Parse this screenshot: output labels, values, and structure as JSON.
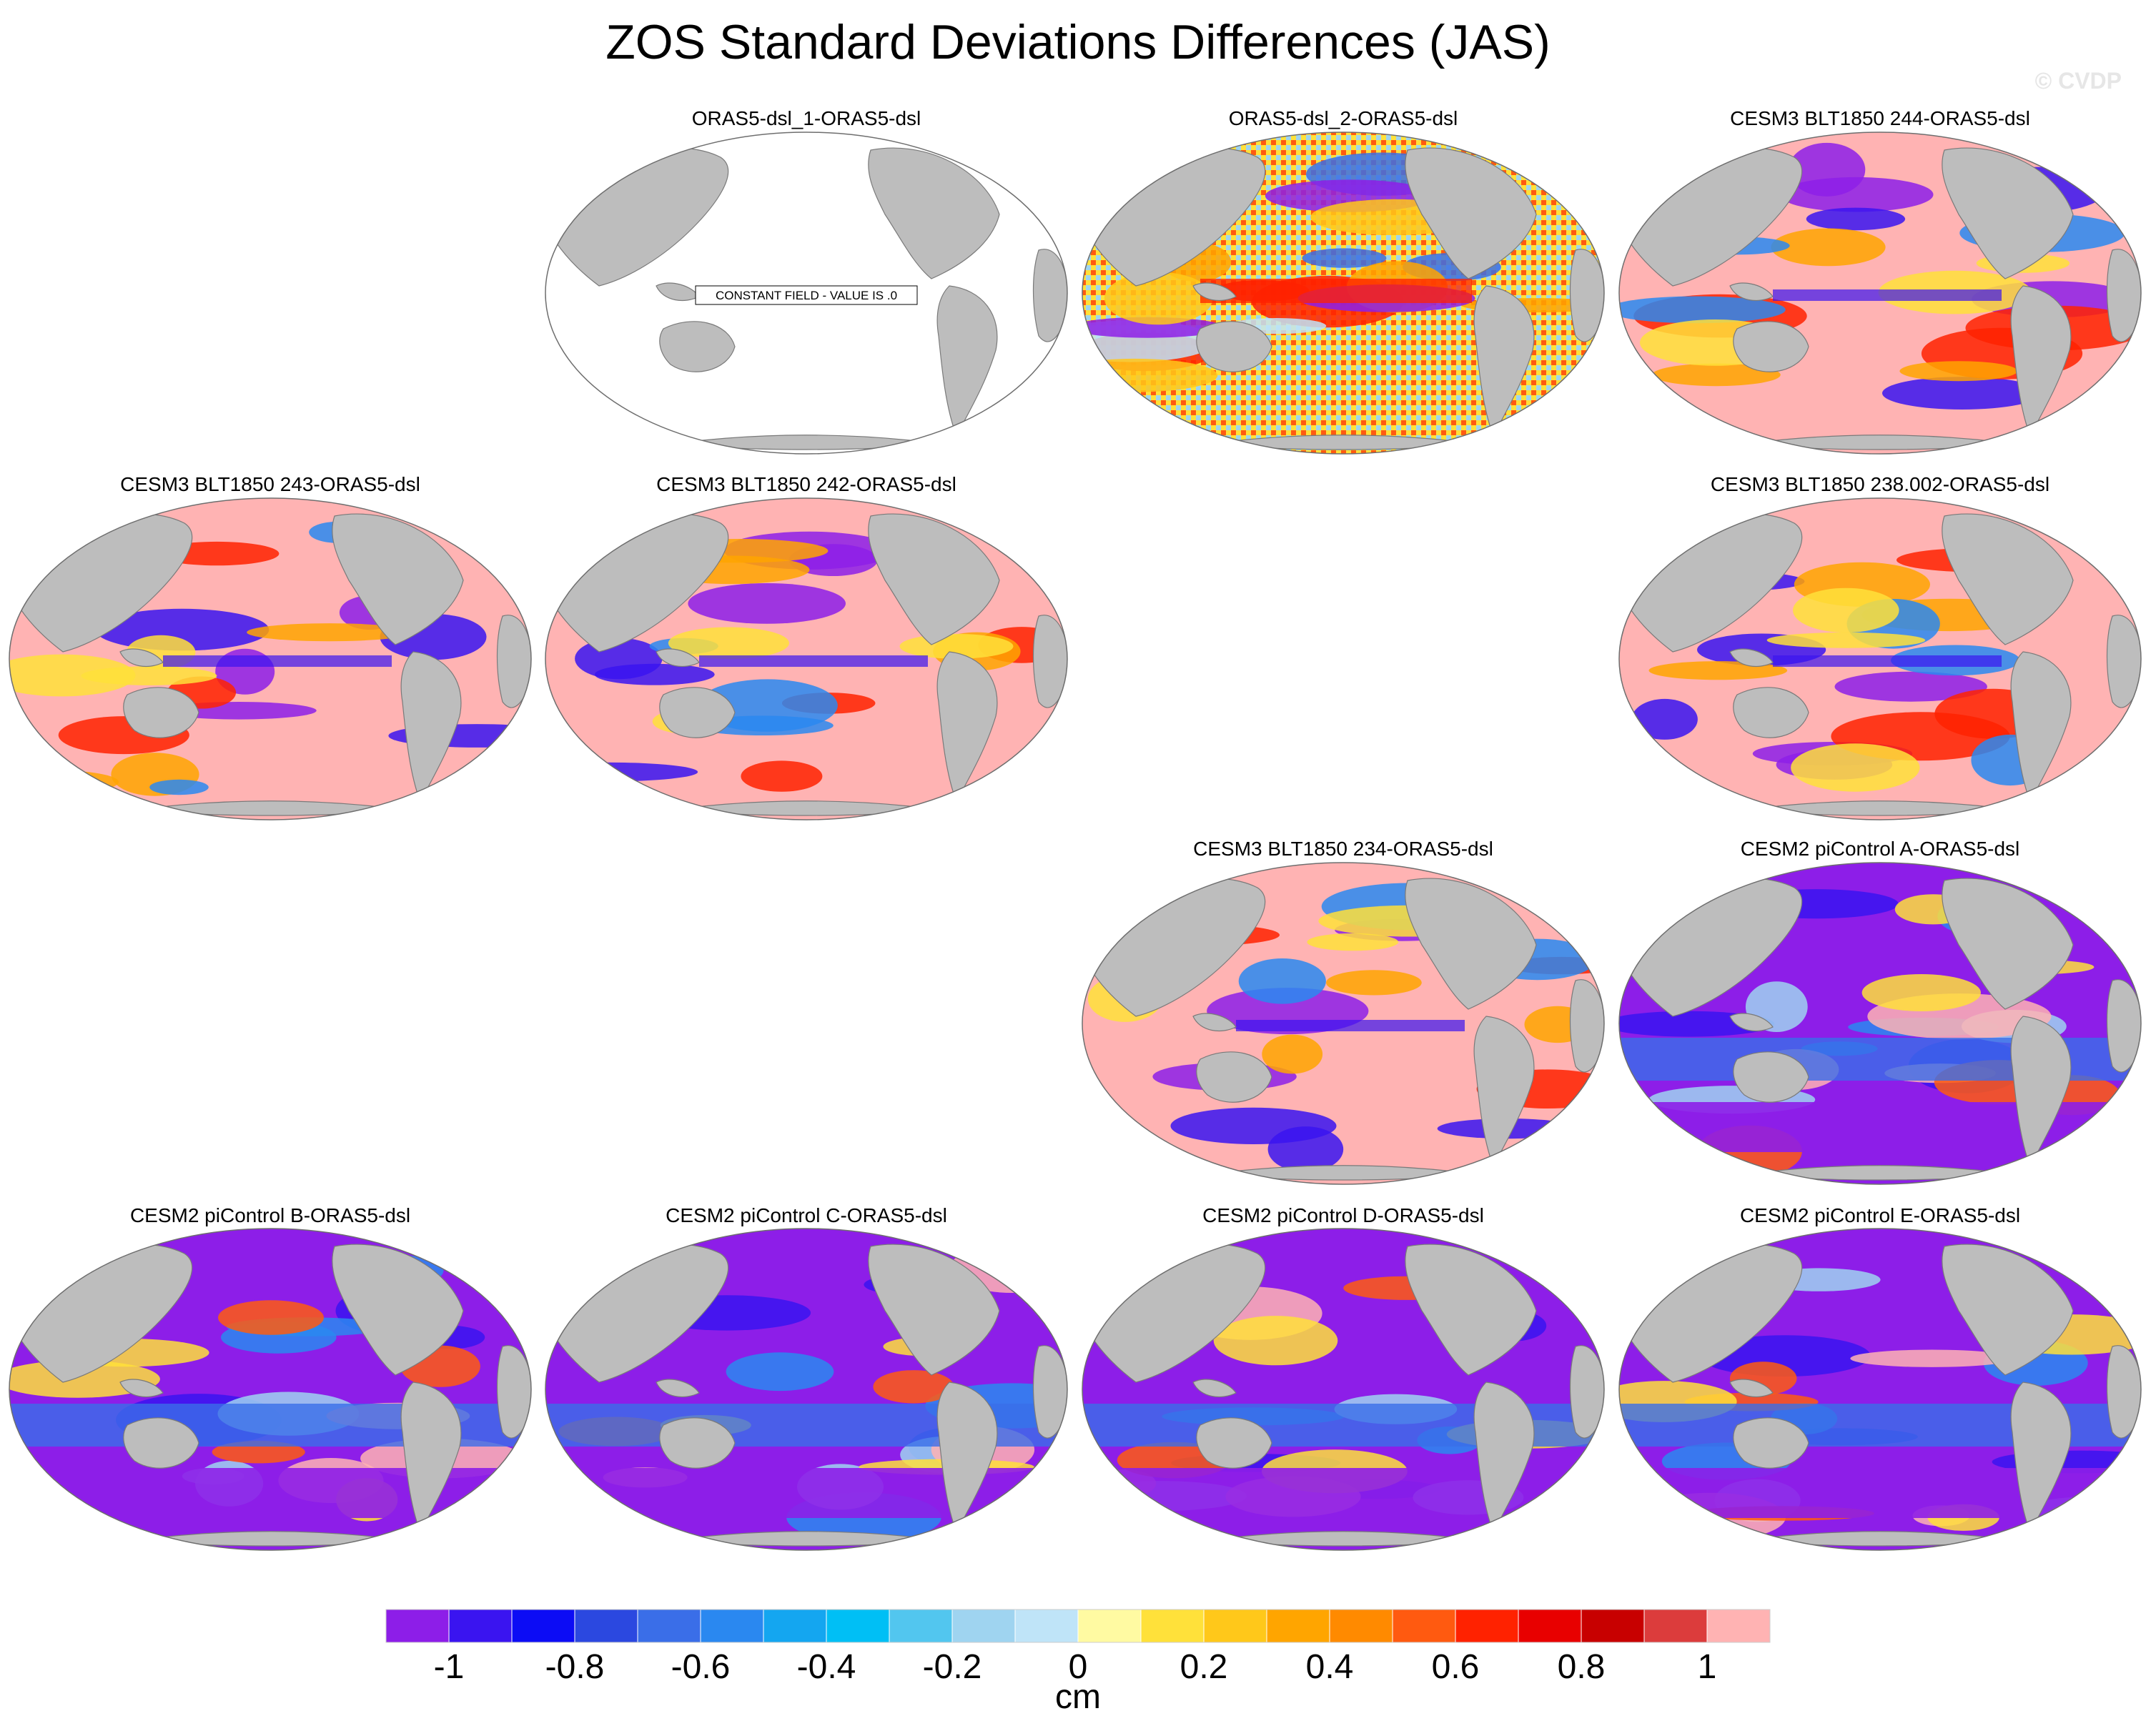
{
  "figure": {
    "title": "ZOS Standard Deviations Differences (JAS)",
    "watermark": "© CVDP"
  },
  "chart_data": {
    "type": "heatmap",
    "title": "ZOS Standard Deviations Differences (JAS)",
    "units": "cm",
    "colorbar": {
      "levels": [
        -1,
        -0.9,
        -0.8,
        -0.7,
        -0.6,
        -0.5,
        -0.4,
        -0.3,
        -0.2,
        -0.1,
        0,
        0.1,
        0.2,
        0.3,
        0.4,
        0.5,
        0.6,
        0.7,
        0.8,
        0.9,
        1
      ],
      "colors": [
        "#8d1ee8",
        "#3a14f0",
        "#0c0cf5",
        "#2b48e0",
        "#3a6ee8",
        "#2a88f0",
        "#14a6f0",
        "#00bff5",
        "#52c6ef",
        "#9fd4f0",
        "#bfe4f8",
        "#fffaa2",
        "#ffe13a",
        "#ffc81a",
        "#ffa500",
        "#ff8a00",
        "#ff5a10",
        "#ff2200",
        "#e80000",
        "#c80000",
        "#dc3c3c",
        "#ffb3b3"
      ],
      "tick_labels": [
        "-1",
        "-0.8",
        "-0.6",
        "-0.4",
        "-0.2",
        "0",
        "0.2",
        "0.4",
        "0.6",
        "0.8",
        "1"
      ],
      "tick_values": [
        -1,
        -0.8,
        -0.6,
        -0.4,
        -0.2,
        0,
        0.2,
        0.4,
        0.6,
        0.8,
        1
      ]
    },
    "panels": [
      {
        "title": "ORAS5-dsl_1-ORAS5-dsl",
        "scheme": "constant",
        "note": "CONSTANT FIELD - VALUE IS .0"
      },
      {
        "title": "ORAS5-dsl_2-ORAS5-dsl",
        "scheme": "mixed"
      },
      {
        "title": "CESM3 BLT1850 244-ORAS5-dsl",
        "scheme": "pink"
      },
      {
        "title": "CESM3 BLT1850 243-ORAS5-dsl",
        "scheme": "pink"
      },
      {
        "title": "CESM3 BLT1850 242-ORAS5-dsl",
        "scheme": "pink"
      },
      {
        "title": "CESM3 BLT1850 238.002-ORAS5-dsl",
        "scheme": "pink"
      },
      {
        "title": "CESM3 BLT1850 234-ORAS5-dsl",
        "scheme": "pink"
      },
      {
        "title": "CESM2 piControl A-ORAS5-dsl",
        "scheme": "purple"
      },
      {
        "title": "CESM2 piControl B-ORAS5-dsl",
        "scheme": "purple"
      },
      {
        "title": "CESM2 piControl C-ORAS5-dsl",
        "scheme": "purple"
      },
      {
        "title": "CESM2 piControl D-ORAS5-dsl",
        "scheme": "purple"
      },
      {
        "title": "CESM2 piControl E-ORAS5-dsl",
        "scheme": "purple"
      }
    ]
  }
}
